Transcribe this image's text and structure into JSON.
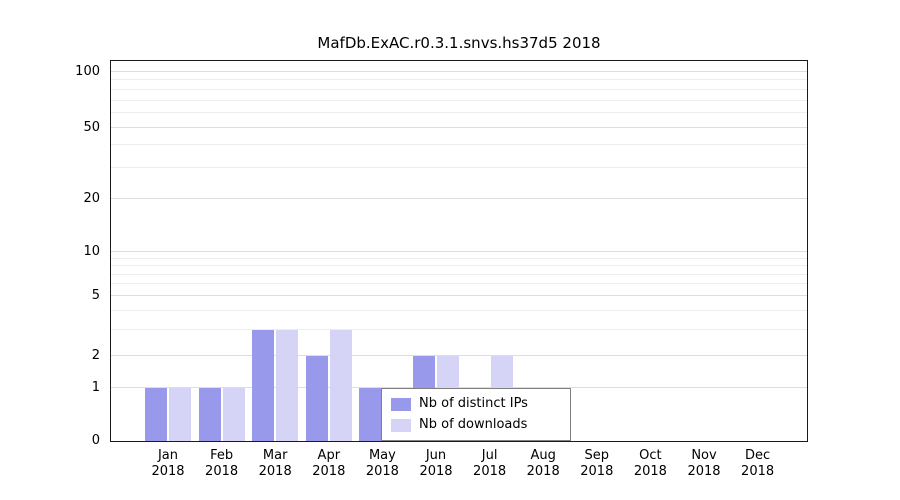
{
  "chart_data": {
    "type": "bar",
    "title": "MafDb.ExAC.r0.3.1.snvs.hs37d5 2018",
    "months": [
      "Jan",
      "Feb",
      "Mar",
      "Apr",
      "May",
      "Jun",
      "Jul",
      "Aug",
      "Sep",
      "Oct",
      "Nov",
      "Dec"
    ],
    "year": "2018",
    "series": [
      {
        "name": "Nb of distinct IPs",
        "color": "#9999ec",
        "values": [
          1,
          1,
          3,
          2,
          1,
          2,
          1,
          0,
          0,
          0,
          0,
          0
        ]
      },
      {
        "name": "Nb of downloads",
        "color": "#d5d4f7",
        "values": [
          1,
          1,
          3,
          3,
          1,
          2,
          2,
          0,
          0,
          0,
          0,
          0
        ]
      }
    ],
    "yticks": [
      0,
      1,
      2,
      5,
      10,
      20,
      50,
      100
    ],
    "minor_yticks": [
      3,
      4,
      6,
      7,
      8,
      9,
      30,
      40,
      60,
      70,
      80,
      90
    ],
    "ylim": [
      0,
      100
    ],
    "yscale": "log-like",
    "grid": true,
    "legend_position": "bottom-center-inside"
  }
}
